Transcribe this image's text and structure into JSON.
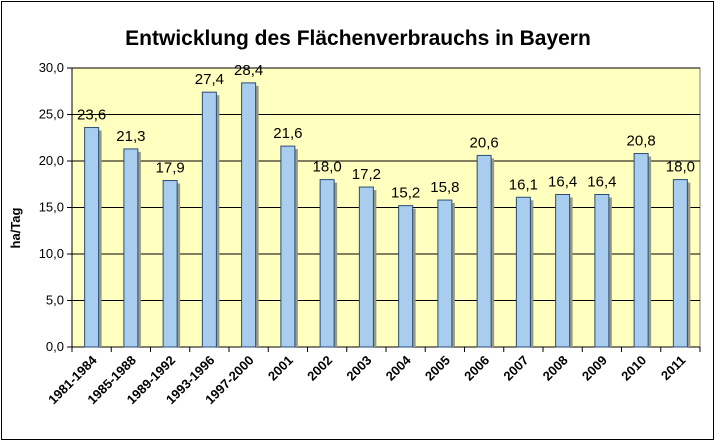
{
  "chart_data": {
    "type": "bar",
    "title": "Entwicklung des Flächenverbrauchs in Bayern",
    "ylabel": "ha/Tag",
    "xlabel": "",
    "ylim": [
      0,
      30
    ],
    "yticks": [
      "0,0",
      "5,0",
      "10,0",
      "15,0",
      "20,0",
      "25,0",
      "30,0"
    ],
    "grid": true,
    "legend": "none",
    "categories": [
      "1981-1984",
      "1985-1988",
      "1989-1992",
      "1993-1996",
      "1997-2000",
      "2001",
      "2002",
      "2003",
      "2004",
      "2005",
      "2006",
      "2007",
      "2008",
      "2009",
      "2010",
      "2011"
    ],
    "values": [
      23.6,
      21.3,
      17.9,
      27.4,
      28.4,
      21.6,
      18.0,
      17.2,
      15.2,
      15.8,
      20.6,
      16.1,
      16.4,
      16.4,
      20.8,
      18.0
    ],
    "data_labels": [
      "23,6",
      "21,3",
      "17,9",
      "27,4",
      "28,4",
      "21,6",
      "18,0",
      "17,2",
      "15,2",
      "15,8",
      "20,6",
      "16,1",
      "16,4",
      "16,4",
      "20,8",
      "18,0"
    ],
    "colors": {
      "plot_background": "#FFFFC0",
      "bar_fill": "#A9CDEE",
      "bar_stroke": "#2A4C78",
      "grid": "#000000"
    }
  }
}
